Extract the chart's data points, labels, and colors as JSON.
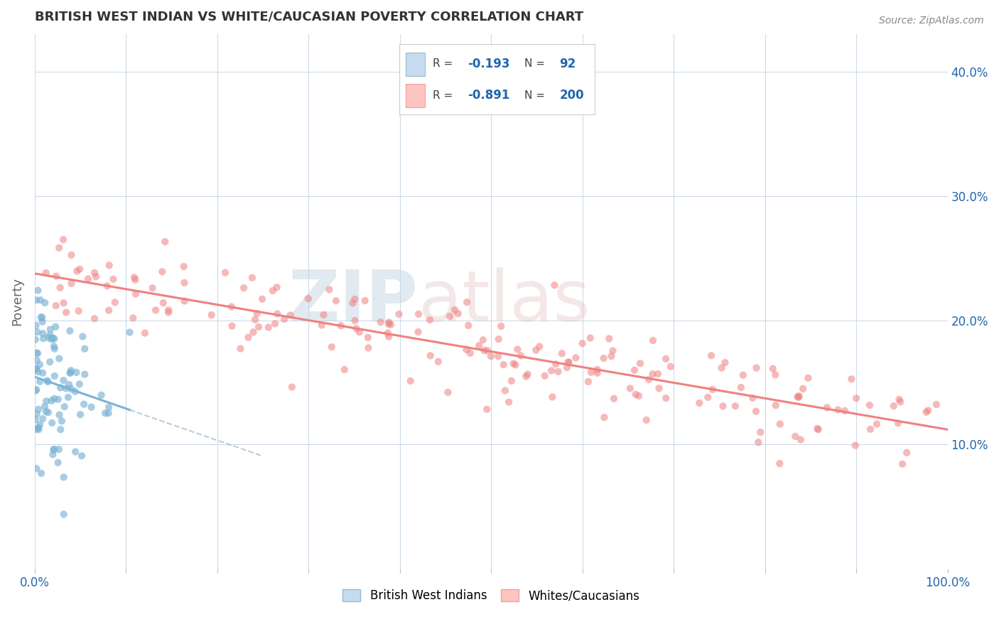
{
  "title": "BRITISH WEST INDIAN VS WHITE/CAUCASIAN POVERTY CORRELATION CHART",
  "source": "Source: ZipAtlas.com",
  "ylabel": "Poverty",
  "right_ytick_labels": [
    "10.0%",
    "20.0%",
    "30.0%",
    "40.0%"
  ],
  "right_ytick_values": [
    0.1,
    0.2,
    0.3,
    0.4
  ],
  "color_blue": "#7ab3d4",
  "color_blue_light": "#c6dbef",
  "color_pink": "#f08080",
  "color_pink_light": "#fcc5c0",
  "color_blue_text": "#2166ac",
  "color_grid": "#c8d8e8",
  "watermark_zip": "ZIP",
  "watermark_atlas": "atlas",
  "seed": 17,
  "n_blue": 92,
  "n_pink": 200,
  "r_blue": -0.193,
  "r_pink": -0.891,
  "ylim_min": 0.0,
  "ylim_max": 0.43
}
